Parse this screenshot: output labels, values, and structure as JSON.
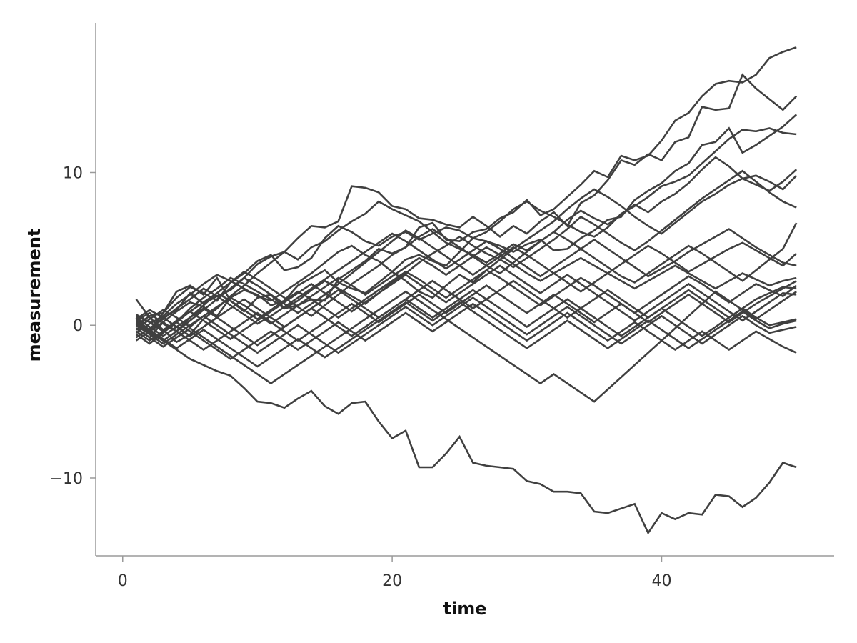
{
  "chart_data": {
    "type": "line",
    "xlabel": "time",
    "ylabel": "measurement",
    "xlim": [
      -2,
      52.8
    ],
    "ylim": [
      -15.1,
      19.8
    ],
    "x_ticks": [
      {
        "value": 0,
        "label": "0"
      },
      {
        "value": 20,
        "label": "20"
      },
      {
        "value": 40,
        "label": "40"
      }
    ],
    "y_ticks": [
      {
        "value": -10,
        "label": "−10"
      },
      {
        "value": 0,
        "label": "0"
      },
      {
        "value": 10,
        "label": "10"
      }
    ],
    "line_color": "#404040",
    "grid": false,
    "legend": "none",
    "x": [
      1,
      2,
      3,
      4,
      5,
      6,
      7,
      8,
      9,
      10,
      11,
      12,
      13,
      14,
      15,
      16,
      17,
      18,
      19,
      20,
      21,
      22,
      23,
      24,
      25,
      26,
      27,
      28,
      29,
      30,
      31,
      32,
      33,
      34,
      35,
      36,
      37,
      38,
      39,
      40,
      41,
      42,
      43,
      44,
      45,
      46,
      47,
      48,
      49,
      50
    ],
    "series": [
      {
        "values": [
          0.0,
          0.6,
          0.8,
          2.2,
          2.6,
          2.0,
          3.1,
          1.6,
          0.9,
          1.8,
          2.0,
          1.1,
          1.3,
          1.7,
          1.6,
          3.0,
          3.6,
          4.2,
          5.0,
          4.7,
          5.1,
          6.4,
          6.7,
          5.6,
          5.5,
          6.1,
          6.3,
          7.0,
          7.4,
          8.2,
          7.2,
          7.6,
          8.4,
          9.2,
          10.1,
          9.7,
          11.1,
          10.8,
          11.1,
          12.1,
          13.4,
          13.9,
          15.0,
          15.8,
          16.0,
          15.9,
          16.4,
          17.5,
          17.9,
          18.2
        ]
      },
      {
        "values": [
          0.2,
          -0.3,
          0.5,
          1.0,
          2.1,
          1.4,
          1.9,
          2.3,
          3.1,
          4.0,
          4.5,
          4.8,
          5.7,
          6.5,
          6.4,
          6.8,
          9.1,
          9.0,
          8.7,
          7.8,
          7.6,
          7.0,
          6.9,
          6.6,
          6.4,
          7.1,
          6.5,
          5.8,
          6.5,
          6.0,
          6.8,
          7.4,
          6.5,
          8.0,
          8.5,
          9.5,
          10.8,
          10.5,
          11.2,
          10.8,
          12.0,
          12.3,
          14.3,
          14.1,
          14.2,
          16.4,
          15.5,
          14.8,
          14.1,
          15.0
        ]
      },
      {
        "values": [
          0.5,
          -0.4,
          0.8,
          1.8,
          2.5,
          2.1,
          1.6,
          2.8,
          3.4,
          4.2,
          4.6,
          3.6,
          3.8,
          4.4,
          5.7,
          6.5,
          6.1,
          5.5,
          5.2,
          5.8,
          6.1,
          5.6,
          6.0,
          6.4,
          6.2,
          5.7,
          5.5,
          5.2,
          4.8,
          5.3,
          5.6,
          4.9,
          5.0,
          5.7,
          6.2,
          6.9,
          7.1,
          8.2,
          8.8,
          9.3,
          10.1,
          10.6,
          11.8,
          12.0,
          12.9,
          11.3,
          11.8,
          12.4,
          13.0,
          13.8
        ]
      },
      {
        "values": [
          -0.2,
          -0.8,
          0.2,
          0.9,
          1.5,
          1.2,
          0.6,
          1.8,
          2.3,
          2.0,
          1.3,
          1.6,
          2.6,
          3.1,
          3.6,
          2.8,
          2.4,
          2.1,
          2.8,
          3.5,
          4.3,
          4.6,
          4.2,
          3.9,
          4.8,
          5.7,
          6.1,
          6.8,
          7.6,
          8.1,
          7.5,
          7.1,
          6.6,
          6.1,
          5.8,
          6.4,
          7.3,
          7.8,
          8.4,
          9.1,
          9.4,
          9.8,
          10.6,
          11.4,
          12.2,
          12.8,
          12.7,
          12.9,
          12.6,
          12.5
        ]
      },
      {
        "values": [
          0.6,
          0.2,
          -0.3,
          -1.1,
          -0.6,
          0.4,
          1.1,
          1.9,
          2.6,
          3.4,
          4.1,
          4.8,
          4.3,
          5.1,
          5.5,
          6.2,
          6.8,
          7.3,
          8.1,
          7.6,
          7.2,
          6.8,
          6.1,
          5.4,
          5.0,
          4.6,
          4.1,
          4.7,
          5.3,
          4.9,
          5.5,
          6.1,
          6.9,
          7.5,
          7.0,
          6.6,
          7.2,
          7.9,
          7.4,
          8.1,
          8.6,
          9.3,
          10.2,
          11.0,
          10.4,
          9.6,
          9.2,
          8.8,
          9.4,
          10.2
        ]
      },
      {
        "values": [
          -0.5,
          0.1,
          0.6,
          1.4,
          2.0,
          2.7,
          3.3,
          2.9,
          2.4,
          1.9,
          1.6,
          2.2,
          2.8,
          3.4,
          4.1,
          4.8,
          5.2,
          4.6,
          4.2,
          3.5,
          2.9,
          2.2,
          1.8,
          2.6,
          3.3,
          2.8,
          3.6,
          4.3,
          5.0,
          5.6,
          6.2,
          6.8,
          7.6,
          8.3,
          8.9,
          8.4,
          7.8,
          7.1,
          6.5,
          6.0,
          6.7,
          7.4,
          8.1,
          8.6,
          9.2,
          9.6,
          9.8,
          9.4,
          8.9,
          9.8
        ]
      },
      {
        "values": [
          1.7,
          0.5,
          -0.3,
          0.2,
          1.1,
          1.8,
          2.4,
          3.1,
          2.7,
          2.2,
          1.7,
          1.1,
          1.6,
          2.3,
          2.9,
          2.4,
          1.9,
          1.4,
          2.1,
          2.8,
          3.4,
          4.1,
          4.7,
          5.2,
          5.8,
          5.2,
          4.7,
          4.3,
          3.8,
          4.4,
          5.0,
          5.6,
          6.3,
          7.1,
          6.6,
          6.0,
          5.4,
          4.9,
          5.5,
          6.2,
          6.9,
          7.6,
          8.3,
          8.9,
          9.5,
          10.1,
          9.4,
          8.7,
          8.1,
          7.7
        ]
      },
      {
        "values": [
          0.3,
          0.8,
          0.1,
          -0.4,
          0.5,
          1.3,
          2.1,
          2.8,
          3.5,
          3.0,
          2.4,
          1.8,
          1.2,
          0.6,
          1.3,
          2.0,
          2.7,
          3.3,
          3.9,
          4.6,
          5.1,
          5.8,
          6.3,
          5.7,
          5.1,
          4.5,
          3.9,
          3.4,
          4.1,
          4.8,
          5.5,
          6.1,
          5.6,
          5.0,
          4.4,
          3.8,
          3.2,
          2.8,
          3.4,
          4.0,
          4.6,
          5.2,
          4.7,
          4.1,
          3.5,
          2.9,
          3.6,
          4.3,
          5.0,
          6.7
        ]
      },
      {
        "values": [
          -0.8,
          -0.2,
          0.4,
          1.1,
          1.7,
          2.4,
          1.9,
          1.3,
          0.7,
          0.1,
          0.6,
          1.2,
          1.8,
          2.4,
          3.0,
          3.6,
          4.2,
          4.8,
          5.4,
          6.0,
          5.5,
          4.9,
          4.3,
          3.7,
          4.3,
          4.9,
          5.5,
          5.0,
          4.4,
          3.8,
          3.2,
          3.8,
          4.4,
          5.0,
          5.6,
          5.0,
          4.4,
          3.8,
          3.2,
          3.7,
          4.2,
          4.8,
          5.3,
          5.8,
          6.3,
          5.7,
          5.1,
          4.6,
          4.1,
          3.9
        ]
      },
      {
        "values": [
          0.1,
          -0.5,
          -1.0,
          -0.4,
          0.3,
          1.0,
          1.7,
          2.4,
          3.1,
          2.6,
          2.0,
          1.4,
          0.8,
          1.4,
          2.0,
          2.7,
          3.4,
          4.1,
          4.8,
          5.5,
          6.2,
          5.7,
          5.1,
          4.5,
          3.9,
          3.3,
          3.9,
          4.5,
          5.1,
          4.6,
          4.0,
          3.4,
          2.8,
          2.2,
          2.8,
          3.4,
          4.0,
          4.6,
          5.2,
          4.7,
          4.1,
          3.5,
          4.0,
          4.5,
          5.0,
          5.4,
          4.9,
          4.4,
          3.9,
          4.7
        ]
      },
      {
        "values": [
          -0.3,
          0.4,
          1.0,
          0.5,
          -0.1,
          0.6,
          1.2,
          1.8,
          1.3,
          0.7,
          0.1,
          0.7,
          1.3,
          1.9,
          2.5,
          3.1,
          2.6,
          2.0,
          2.6,
          3.2,
          3.8,
          4.4,
          3.9,
          3.3,
          3.9,
          4.5,
          5.1,
          4.6,
          4.0,
          3.4,
          2.9,
          3.4,
          3.9,
          4.4,
          3.9,
          3.4,
          2.9,
          2.4,
          2.9,
          3.4,
          3.9,
          3.4,
          2.9,
          2.4,
          2.9,
          3.4,
          3.0,
          2.6,
          2.9,
          3.1
        ]
      },
      {
        "values": [
          0.7,
          0.2,
          -0.4,
          0.3,
          0.9,
          1.5,
          2.1,
          1.6,
          1.0,
          0.4,
          1.0,
          1.6,
          2.2,
          1.7,
          1.1,
          0.5,
          1.1,
          1.7,
          2.3,
          2.9,
          3.5,
          3.0,
          2.4,
          1.8,
          2.4,
          3.0,
          3.6,
          3.1,
          2.5,
          1.9,
          1.3,
          1.9,
          2.5,
          3.1,
          2.6,
          2.0,
          1.4,
          0.8,
          1.4,
          2.0,
          2.6,
          3.2,
          2.7,
          2.1,
          1.5,
          2.1,
          2.7,
          2.3,
          1.9,
          2.6
        ]
      },
      {
        "values": [
          -0.6,
          -1.2,
          -0.5,
          0.2,
          0.9,
          0.3,
          -0.3,
          -0.9,
          -0.3,
          0.3,
          0.9,
          1.5,
          2.1,
          2.7,
          2.1,
          1.5,
          0.9,
          1.5,
          2.1,
          2.7,
          3.3,
          2.7,
          2.1,
          1.5,
          2.1,
          2.7,
          3.3,
          3.9,
          3.3,
          2.7,
          2.1,
          2.7,
          3.3,
          2.7,
          2.1,
          1.5,
          0.9,
          0.3,
          0.9,
          1.5,
          2.1,
          2.7,
          2.1,
          1.5,
          0.9,
          0.3,
          0.9,
          1.5,
          2.1,
          2.0
        ]
      },
      {
        "values": [
          0.4,
          1.0,
          0.5,
          -0.1,
          -0.7,
          -0.1,
          0.5,
          1.1,
          1.7,
          1.1,
          0.5,
          -0.1,
          0.5,
          1.1,
          1.7,
          2.3,
          1.7,
          1.1,
          0.5,
          1.1,
          1.7,
          2.3,
          2.9,
          2.3,
          1.7,
          1.1,
          1.7,
          2.3,
          2.9,
          2.3,
          1.7,
          1.1,
          0.5,
          1.1,
          1.7,
          2.3,
          1.7,
          1.1,
          0.5,
          1.1,
          1.7,
          2.3,
          1.7,
          1.1,
          0.5,
          1.1,
          1.7,
          2.1,
          2.5,
          2.4
        ]
      },
      {
        "values": [
          -1.0,
          -0.4,
          0.2,
          -0.4,
          -1.0,
          -1.6,
          -1.0,
          -0.4,
          0.2,
          0.8,
          0.2,
          -0.4,
          -1.0,
          -0.4,
          0.2,
          0.8,
          1.4,
          0.8,
          0.2,
          0.8,
          1.4,
          2.0,
          1.4,
          0.8,
          1.4,
          2.0,
          2.6,
          2.0,
          1.4,
          0.8,
          1.4,
          2.0,
          1.4,
          0.8,
          0.2,
          0.8,
          1.4,
          0.8,
          0.2,
          0.8,
          1.4,
          2.0,
          1.4,
          0.8,
          0.2,
          0.8,
          1.4,
          1.9,
          2.4,
          2.9
        ]
      },
      {
        "values": [
          0.5,
          -0.1,
          -0.7,
          -0.1,
          0.5,
          1.1,
          0.5,
          -0.1,
          -0.7,
          -1.3,
          -0.7,
          -0.1,
          0.5,
          1.1,
          0.5,
          -0.1,
          -0.7,
          -0.1,
          0.5,
          1.1,
          1.7,
          1.1,
          0.5,
          1.1,
          1.7,
          2.3,
          1.7,
          1.1,
          0.5,
          -0.1,
          0.5,
          1.1,
          1.7,
          1.1,
          0.5,
          -0.1,
          -0.7,
          -0.1,
          0.5,
          1.1,
          0.5,
          -0.1,
          -0.7,
          -0.1,
          0.5,
          1.1,
          0.5,
          0.0,
          0.2,
          0.4
        ]
      },
      {
        "values": [
          0.0,
          -0.6,
          -1.2,
          -0.6,
          0.0,
          0.6,
          0.0,
          -0.6,
          -1.2,
          -1.8,
          -1.2,
          -0.6,
          0.0,
          -0.6,
          -1.2,
          -1.8,
          -1.2,
          -0.6,
          0.0,
          0.6,
          1.2,
          0.6,
          0.0,
          0.6,
          1.2,
          1.8,
          1.2,
          0.6,
          0.0,
          -0.6,
          0.0,
          0.6,
          1.2,
          0.6,
          0.0,
          -0.6,
          -1.2,
          -0.6,
          0.0,
          0.6,
          0.0,
          -0.6,
          -1.2,
          -0.6,
          0.0,
          0.6,
          0.0,
          -0.5,
          -0.3,
          -0.1
        ]
      },
      {
        "values": [
          -0.4,
          -1.0,
          -0.4,
          0.2,
          -0.4,
          -1.0,
          -1.6,
          -2.2,
          -1.6,
          -1.0,
          -0.4,
          -1.0,
          -1.6,
          -1.0,
          -0.4,
          0.2,
          -0.4,
          -1.0,
          -0.4,
          0.2,
          0.8,
          0.2,
          -0.4,
          0.2,
          0.8,
          1.4,
          0.8,
          0.2,
          -0.4,
          -1.0,
          -0.4,
          0.2,
          0.8,
          0.2,
          -0.4,
          -1.0,
          -0.4,
          0.2,
          -0.4,
          -1.0,
          -1.6,
          -1.0,
          -0.4,
          -1.0,
          -1.6,
          -1.0,
          -0.4,
          -0.9,
          -1.4,
          -1.8
        ]
      },
      {
        "values": [
          0.3,
          -0.3,
          -0.9,
          -1.5,
          -0.9,
          -0.3,
          -0.9,
          -1.5,
          -2.1,
          -2.7,
          -2.1,
          -1.5,
          -0.9,
          -1.5,
          -2.1,
          -1.5,
          -0.9,
          -0.3,
          0.3,
          0.9,
          1.5,
          0.9,
          0.3,
          0.9,
          1.5,
          0.9,
          0.3,
          -0.3,
          -0.9,
          -1.5,
          -0.9,
          -0.3,
          0.3,
          -0.3,
          -0.9,
          -1.5,
          -0.9,
          -0.3,
          0.3,
          -0.3,
          -0.9,
          -1.5,
          -0.9,
          -0.3,
          0.3,
          0.9,
          0.3,
          -0.2,
          0.1,
          0.3
        ]
      },
      {
        "values": [
          -0.2,
          -0.8,
          -1.4,
          -0.8,
          -0.2,
          -0.8,
          -1.4,
          -2.0,
          -2.6,
          -3.2,
          -3.8,
          -3.2,
          -2.6,
          -2.0,
          -1.4,
          -0.8,
          -0.2,
          0.4,
          1.0,
          1.6,
          2.2,
          1.6,
          1.0,
          0.4,
          -0.2,
          -0.8,
          -1.4,
          -2.0,
          -2.6,
          -3.2,
          -3.8,
          -3.2,
          -3.8,
          -4.4,
          -5.0,
          -4.2,
          -3.4,
          -2.6,
          -1.8,
          -1.0,
          -0.2,
          0.6,
          1.4,
          2.2,
          1.6,
          1.0,
          0.4,
          1.0,
          1.6,
          2.2
        ]
      },
      {
        "values": [
          0.2,
          -0.4,
          -1.0,
          -1.6,
          -2.2,
          -2.6,
          -3.0,
          -3.3,
          -4.1,
          -5.0,
          -5.1,
          -5.4,
          -4.8,
          -4.3,
          -5.3,
          -5.8,
          -5.1,
          -5.0,
          -6.3,
          -7.4,
          -6.9,
          -9.3,
          -9.3,
          -8.4,
          -7.3,
          -9.0,
          -9.2,
          -9.3,
          -9.4,
          -10.2,
          -10.4,
          -10.9,
          -10.9,
          -11.0,
          -12.2,
          -12.3,
          -12.0,
          -11.7,
          -13.6,
          -12.3,
          -12.7,
          -12.3,
          -12.4,
          -11.1,
          -11.2,
          -11.9,
          -11.3,
          -10.3,
          -9.0,
          -9.3
        ]
      }
    ]
  }
}
